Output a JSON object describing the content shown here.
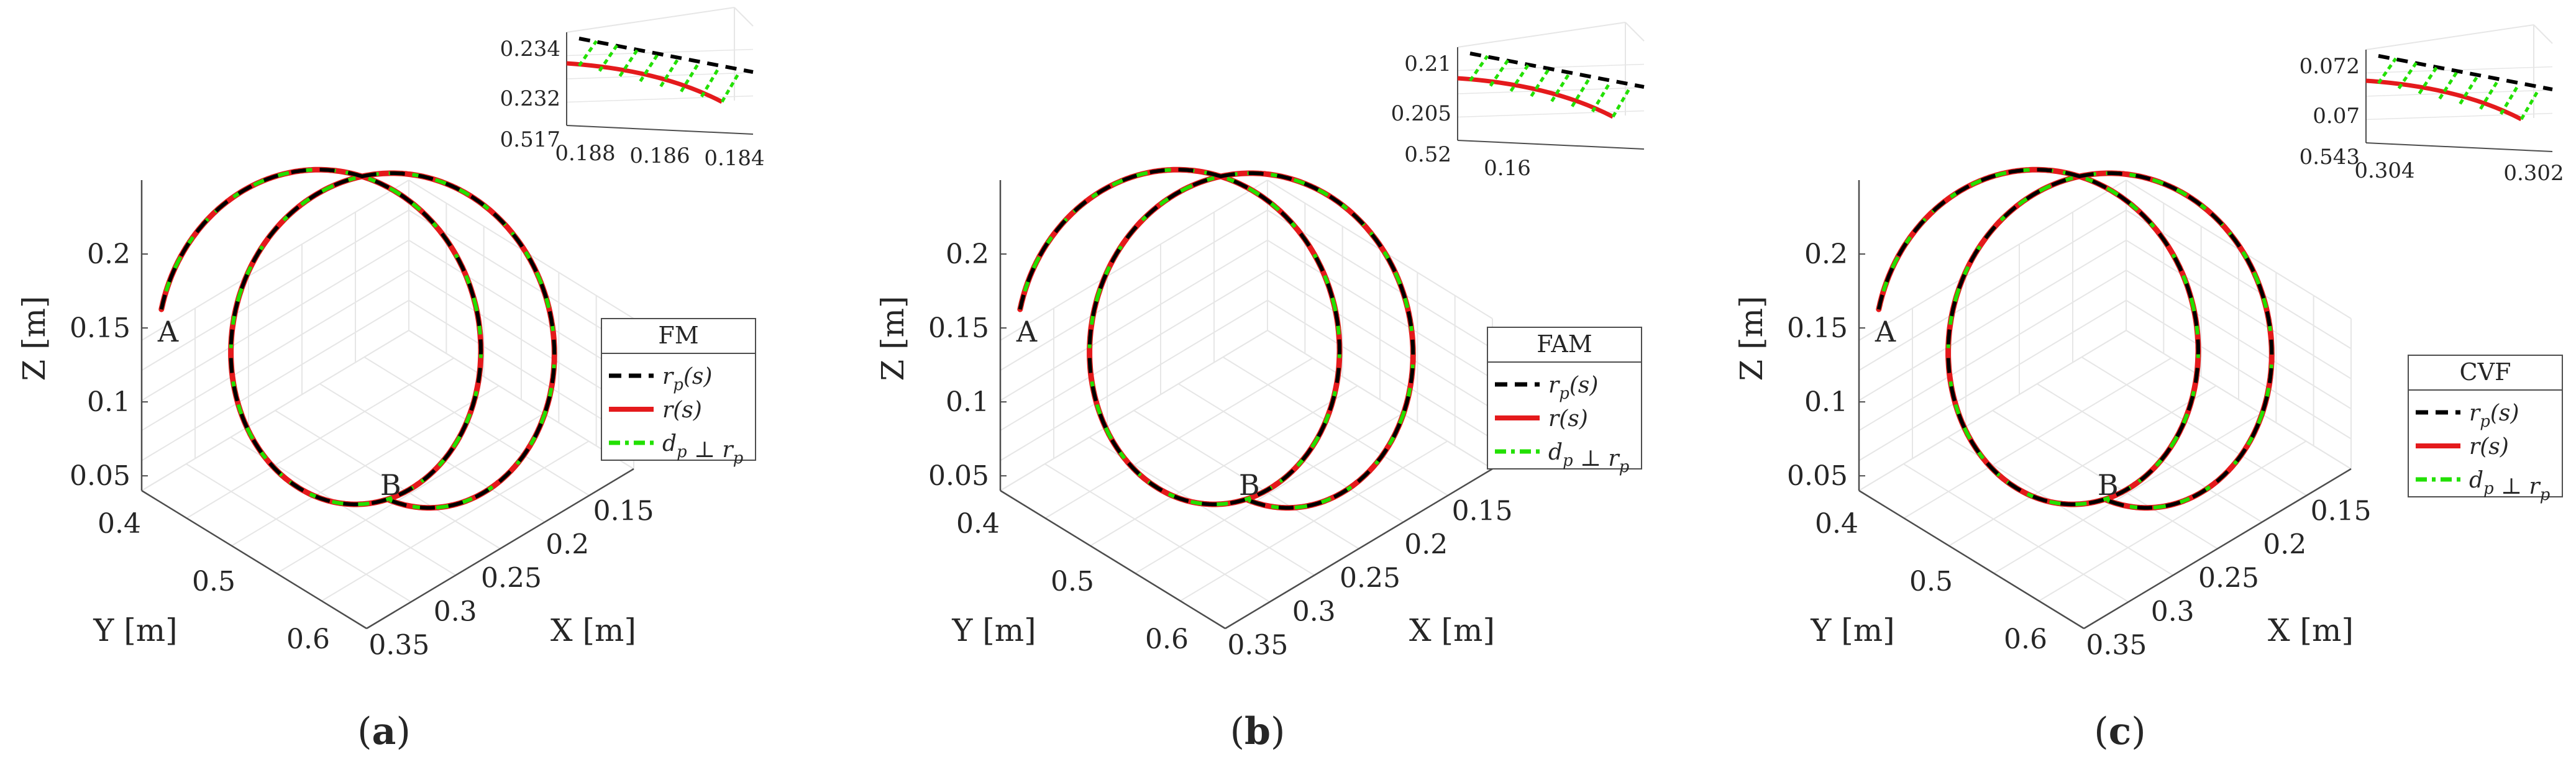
{
  "colors": {
    "reference": "#000000",
    "actual": "#e41a1c",
    "perpendicular": "#22e000",
    "grid": "#e6e6e6",
    "axis": "#4d4d4d"
  },
  "chart_data": [
    {
      "type": "line3d",
      "panel_label": "(a)",
      "legend_title": "FM",
      "xlabel": "X [m]",
      "ylabel": "Y [m]",
      "zlabel": "Z [m]",
      "xlim": [
        0.12,
        0.38
      ],
      "ylim": [
        0.38,
        0.62
      ],
      "zlim": [
        0.04,
        0.25
      ],
      "xticks": [
        "0.15",
        "0.2",
        "0.25",
        "0.3",
        "0.35"
      ],
      "yticks": [
        "0.4",
        "0.5",
        "0.6"
      ],
      "zticks": [
        "0.05",
        "0.1",
        "0.15",
        "0.2"
      ],
      "legend": [
        "r_p(s)",
        "r(s)",
        "d_p ⊥ r_p"
      ],
      "annotations": [
        "A",
        "B"
      ],
      "path": {
        "center_x": 0.25,
        "center_y": 0.5,
        "radius": 0.1,
        "z_center": 0.145,
        "z_amplitude": 0.09,
        "z_rise": 0.04,
        "turns": 2
      },
      "inset": {
        "xticks": [
          "0.188",
          "0.186",
          "0.184"
        ],
        "yticks": [
          "0.517"
        ],
        "zticks": [
          "0.234",
          "0.232"
        ]
      }
    },
    {
      "type": "line3d",
      "panel_label": "(b)",
      "legend_title": "FAM",
      "xlabel": "X [m]",
      "ylabel": "Y [m]",
      "zlabel": "Z [m]",
      "xlim": [
        0.12,
        0.38
      ],
      "ylim": [
        0.38,
        0.62
      ],
      "zlim": [
        0.04,
        0.25
      ],
      "xticks": [
        "0.15",
        "0.2",
        "0.25",
        "0.3",
        "0.35"
      ],
      "yticks": [
        "0.4",
        "0.5",
        "0.6"
      ],
      "zticks": [
        "0.05",
        "0.1",
        "0.15",
        "0.2"
      ],
      "legend": [
        "r_p(s)",
        "r(s)",
        "d_p ⊥ r_p"
      ],
      "annotations": [
        "A",
        "B"
      ],
      "path": {
        "center_x": 0.25,
        "center_y": 0.5,
        "radius": 0.1,
        "z_center": 0.145,
        "z_amplitude": 0.09,
        "z_rise": 0.04,
        "turns": 2
      },
      "inset": {
        "xticks": [
          "0.16"
        ],
        "yticks": [
          "0.52"
        ],
        "zticks": [
          "0.21",
          "0.205"
        ]
      }
    },
    {
      "type": "line3d",
      "panel_label": "(c)",
      "legend_title": "CVF",
      "xlabel": "X [m]",
      "ylabel": "Y [m]",
      "zlabel": "Z [m]",
      "xlim": [
        0.12,
        0.38
      ],
      "ylim": [
        0.38,
        0.62
      ],
      "zlim": [
        0.04,
        0.25
      ],
      "xticks": [
        "0.15",
        "0.2",
        "0.25",
        "0.3",
        "0.35"
      ],
      "yticks": [
        "0.4",
        "0.5",
        "0.6"
      ],
      "zticks": [
        "0.05",
        "0.1",
        "0.15",
        "0.2"
      ],
      "legend": [
        "r_p(s)",
        "r(s)",
        "d_p ⊥ r_p"
      ],
      "annotations": [
        "A",
        "B"
      ],
      "path": {
        "center_x": 0.25,
        "center_y": 0.5,
        "radius": 0.1,
        "z_center": 0.145,
        "z_amplitude": 0.09,
        "z_rise": 0.04,
        "turns": 2
      },
      "inset": {
        "xticks": [
          "0.304",
          "0.302"
        ],
        "yticks": [
          "0.543"
        ],
        "zticks": [
          "0.072",
          "0.07"
        ]
      }
    }
  ]
}
